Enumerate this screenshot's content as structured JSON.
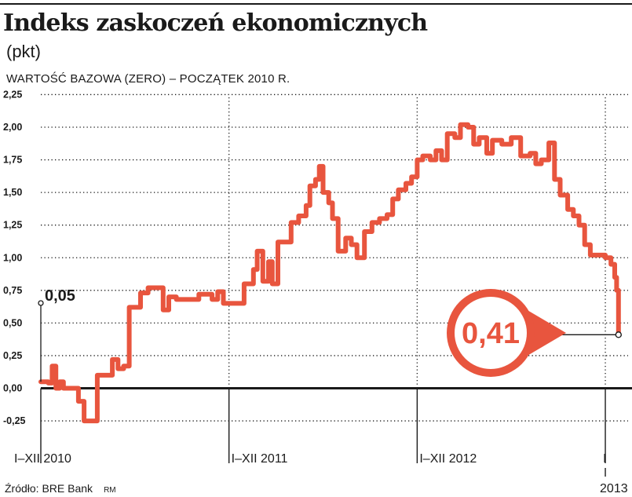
{
  "header": {
    "title": "Indeks zaskoczeń ekonomicznych",
    "unit": "(pkt)",
    "subtitle": "WARTOŚĆ BAZOWA (ZERO) – POCZĄTEK 2010 R."
  },
  "footer": {
    "source": "Źródło: BRE Bank",
    "credit": "RM"
  },
  "colors": {
    "series": "#e8553e",
    "text": "#1a1a1a",
    "grid": "#1a1a1a",
    "callout_text": "#e8553e",
    "callout_fill": "#ffffff"
  },
  "chart_data": {
    "type": "line",
    "title": "Indeks zaskoczeń ekonomicznych",
    "subtitle": "WARTOŚĆ BAZOWA (ZERO) – POCZĄTEK 2010 R.",
    "ylabel": "(pkt)",
    "xlabel": "",
    "x_range": [
      2010.0,
      2013.1
    ],
    "ylim": [
      -0.25,
      2.25
    ],
    "y_ticks": [
      -0.25,
      0.0,
      0.25,
      0.5,
      0.75,
      1.0,
      1.25,
      1.5,
      1.75,
      2.0,
      2.25
    ],
    "y_tick_labels": [
      "-0,25",
      "0,00",
      "0,25",
      "0,50",
      "0,75",
      "1,00",
      "1,25",
      "1,50",
      "1,75",
      "2,00",
      "2,25"
    ],
    "period_labels": [
      {
        "label": "I–XII 2010",
        "start": 2010.0
      },
      {
        "label": "I–XII 2011",
        "start": 2011.0
      },
      {
        "label": "I–XII 2012",
        "start": 2012.0
      },
      {
        "label": "I",
        "sub": "2013",
        "start": 2013.0
      }
    ],
    "grid": {
      "vertical_dotted": true,
      "horizontal_dotted": true,
      "zero_line": "solid"
    },
    "annotations": [
      {
        "label": "0,05",
        "x": 2010.0,
        "y": 0.05
      },
      {
        "label": "0,41",
        "x": 2013.07,
        "y": 0.41,
        "style": "callout"
      }
    ],
    "series": [
      {
        "points": [
          [
            2010.0,
            0.05
          ],
          [
            2010.04,
            0.04
          ],
          [
            2010.06,
            0.17
          ],
          [
            2010.08,
            0.0
          ],
          [
            2010.1,
            0.05
          ],
          [
            2010.12,
            0.0
          ],
          [
            2010.16,
            0.0
          ],
          [
            2010.2,
            -0.1
          ],
          [
            2010.23,
            -0.25
          ],
          [
            2010.27,
            -0.25
          ],
          [
            2010.3,
            0.1
          ],
          [
            2010.34,
            0.1
          ],
          [
            2010.38,
            0.22
          ],
          [
            2010.41,
            0.15
          ],
          [
            2010.44,
            0.17
          ],
          [
            2010.47,
            0.62
          ],
          [
            2010.5,
            0.62
          ],
          [
            2010.53,
            0.73
          ],
          [
            2010.57,
            0.77
          ],
          [
            2010.62,
            0.77
          ],
          [
            2010.65,
            0.6
          ],
          [
            2010.68,
            0.7
          ],
          [
            2010.72,
            0.68
          ],
          [
            2010.76,
            0.68
          ],
          [
            2010.8,
            0.68
          ],
          [
            2010.84,
            0.72
          ],
          [
            2010.87,
            0.72
          ],
          [
            2010.91,
            0.68
          ],
          [
            2010.94,
            0.74
          ],
          [
            2010.97,
            0.65
          ],
          [
            2011.0,
            0.65
          ],
          [
            2011.04,
            0.65
          ],
          [
            2011.08,
            0.8
          ],
          [
            2011.11,
            0.8
          ],
          [
            2011.13,
            0.91
          ],
          [
            2011.15,
            1.05
          ],
          [
            2011.18,
            0.82
          ],
          [
            2011.21,
            0.97
          ],
          [
            2011.23,
            0.8
          ],
          [
            2011.26,
            1.12
          ],
          [
            2011.3,
            1.12
          ],
          [
            2011.33,
            1.27
          ],
          [
            2011.37,
            1.32
          ],
          [
            2011.41,
            1.4
          ],
          [
            2011.43,
            1.55
          ],
          [
            2011.46,
            1.6
          ],
          [
            2011.48,
            1.7
          ],
          [
            2011.5,
            1.5
          ],
          [
            2011.53,
            1.42
          ],
          [
            2011.55,
            1.3
          ],
          [
            2011.58,
            1.05
          ],
          [
            2011.62,
            1.15
          ],
          [
            2011.65,
            1.1
          ],
          [
            2011.68,
            1.0
          ],
          [
            2011.72,
            1.2
          ],
          [
            2011.76,
            1.27
          ],
          [
            2011.8,
            1.3
          ],
          [
            2011.84,
            1.33
          ],
          [
            2011.87,
            1.45
          ],
          [
            2011.9,
            1.52
          ],
          [
            2011.94,
            1.57
          ],
          [
            2011.97,
            1.62
          ],
          [
            2012.0,
            1.75
          ],
          [
            2012.03,
            1.78
          ],
          [
            2012.07,
            1.75
          ],
          [
            2012.1,
            1.82
          ],
          [
            2012.13,
            1.75
          ],
          [
            2012.16,
            1.95
          ],
          [
            2012.2,
            1.92
          ],
          [
            2012.23,
            2.02
          ],
          [
            2012.27,
            2.0
          ],
          [
            2012.3,
            1.87
          ],
          [
            2012.33,
            1.92
          ],
          [
            2012.37,
            1.8
          ],
          [
            2012.4,
            1.9
          ],
          [
            2012.45,
            1.87
          ],
          [
            2012.5,
            1.92
          ],
          [
            2012.55,
            1.78
          ],
          [
            2012.6,
            1.8
          ],
          [
            2012.63,
            1.72
          ],
          [
            2012.66,
            1.75
          ],
          [
            2012.7,
            1.88
          ],
          [
            2012.73,
            1.6
          ],
          [
            2012.76,
            1.48
          ],
          [
            2012.8,
            1.37
          ],
          [
            2012.83,
            1.32
          ],
          [
            2012.86,
            1.25
          ],
          [
            2012.89,
            1.1
          ],
          [
            2012.92,
            1.02
          ],
          [
            2012.96,
            1.02
          ],
          [
            2013.0,
            1.0
          ],
          [
            2013.03,
            0.95
          ],
          [
            2013.05,
            0.85
          ],
          [
            2013.06,
            0.75
          ],
          [
            2013.07,
            0.41
          ]
        ]
      }
    ]
  }
}
